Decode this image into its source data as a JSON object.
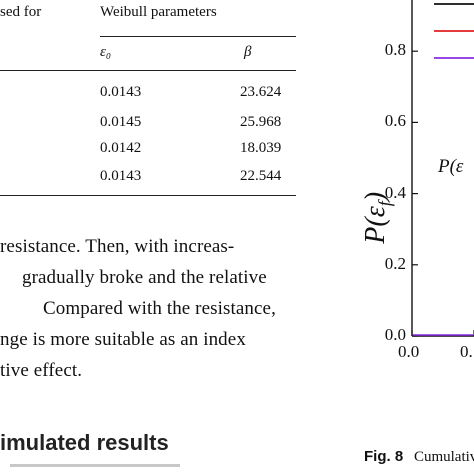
{
  "table": {
    "col1_header": "sed for",
    "group_header": "Weibull parameters",
    "sub_headers": [
      "ε₀",
      "β"
    ],
    "rows": [
      [
        "0.0143",
        "23.624"
      ],
      [
        "0.0145",
        "25.968"
      ],
      [
        "0.0142",
        "18.039"
      ],
      [
        "0.0143",
        "22.544"
      ]
    ]
  },
  "body_text": [
    "resistance. Then, with increas-",
    "gradually broke and the relative",
    "Compared with the resistance,",
    "nge is more suitable as an index",
    "tive effect."
  ],
  "section_heading": "imulated results",
  "chart_data": {
    "type": "line",
    "ylabel": "P(ε_f)",
    "ylabel_display": "P(ε",
    "ylabel_sub": "f",
    "y_ticks": [
      "0.0",
      "0.2",
      "0.4",
      "0.6",
      "0.8"
    ],
    "x_ticks": [
      "0.0",
      "0."
    ],
    "ylim": [
      0,
      1.0
    ],
    "annotation": "P(ε",
    "series": [
      {
        "color": "#111111",
        "values": []
      },
      {
        "color": "#e02020",
        "values": []
      },
      {
        "color": "#8a2be2",
        "values": [
          0,
          0
        ]
      }
    ]
  },
  "caption": {
    "label": "Fig. 8",
    "text": "Cumulative"
  }
}
